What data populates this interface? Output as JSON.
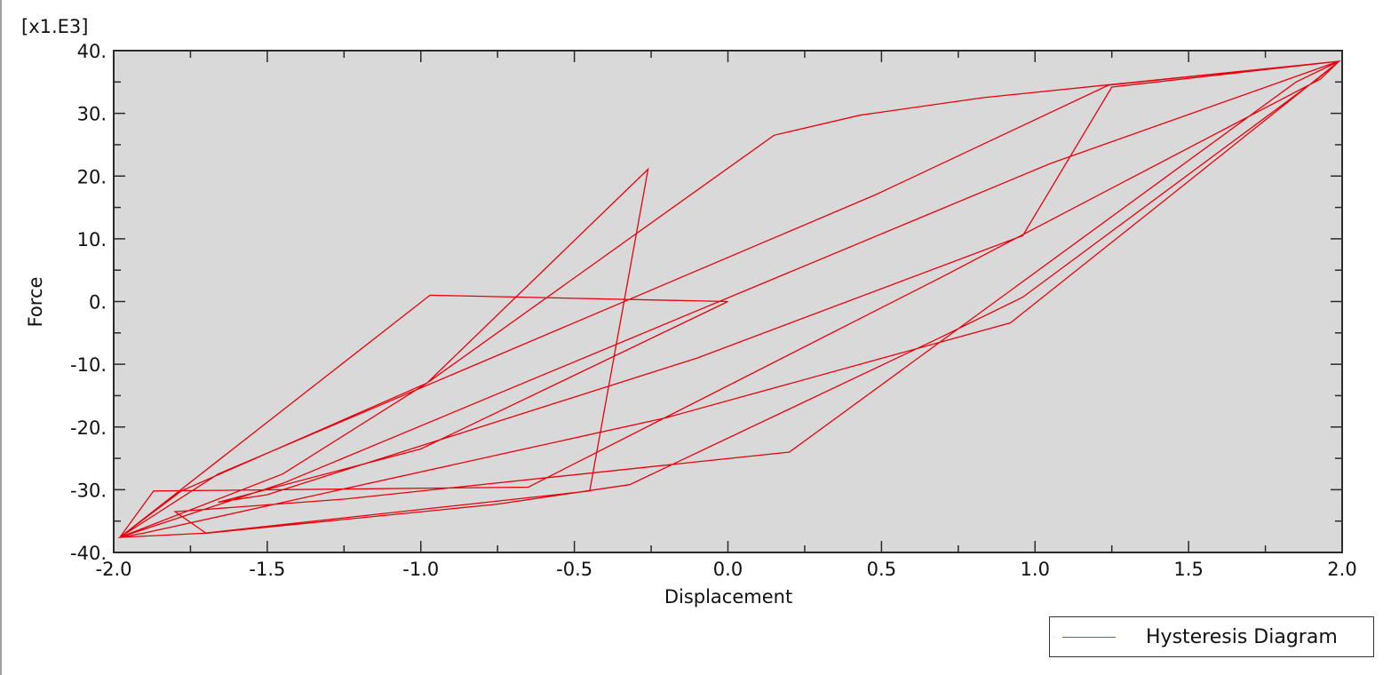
{
  "chart_data": {
    "type": "line",
    "title": "",
    "xlabel": "Displacement",
    "ylabel": "Force",
    "y_multiplier_label": "[x1.E3]",
    "xlim": [
      -2.0,
      2.0
    ],
    "ylim": [
      -40,
      40
    ],
    "x_ticks": [
      -2.0,
      -1.5,
      -1.0,
      -0.5,
      0.0,
      0.5,
      1.0,
      1.5,
      2.0
    ],
    "x_tick_labels": [
      "-2.0",
      "-1.5",
      "-1.0",
      "-0.5",
      "0.0",
      "0.5",
      "1.0",
      "1.5",
      "2.0"
    ],
    "y_ticks": [
      -40,
      -30,
      -20,
      -10,
      0,
      10,
      20,
      30,
      40
    ],
    "y_tick_labels": [
      "-40.",
      "-30.",
      "-20.",
      "-10.",
      "0.",
      "10.",
      "20.",
      "30.",
      "40."
    ],
    "grid": false,
    "plot_background": "#d9d9d9",
    "legend_position": "bottom-right, outside plot",
    "series": [
      {
        "name": "Hysteresis Diagram",
        "color": "#e8000b",
        "x": [
          0.0,
          -0.97,
          -1.98,
          -1.45,
          -0.98,
          0.15,
          0.43,
          0.83,
          1.23,
          1.99,
          1.92,
          0.96,
          0.68,
          -0.32,
          -0.75,
          -1.69,
          -1.98,
          -1.78,
          -0.98,
          -0.26,
          -0.45,
          -1.7,
          -1.8,
          -1.25,
          0.2,
          1.85,
          1.99,
          1.38,
          0.92,
          -0.2,
          -1.9,
          -1.98,
          -1.66,
          0.48,
          1.24,
          1.99,
          1.93,
          0.7,
          -0.65,
          -1.87,
          -1.98,
          -1.45,
          1.05,
          1.96,
          1.99,
          1.25,
          0.96,
          -0.1,
          -1.5,
          -1.66,
          -1.0,
          0.0
        ],
        "y": [
          0.0,
          1.0,
          -37.6,
          -27.5,
          -13.0,
          26.5,
          29.7,
          32.5,
          34.5,
          38.3,
          35.5,
          0.7,
          -6.0,
          -29.2,
          -32.3,
          -36.9,
          -37.6,
          -30.2,
          -13.0,
          21.1,
          -30.2,
          -36.9,
          -33.5,
          -31.5,
          -24.0,
          35.0,
          38.3,
          14.5,
          -3.4,
          -18.5,
          -36.9,
          -37.6,
          -27.5,
          17.0,
          34.5,
          38.3,
          35.5,
          4.0,
          -29.6,
          -30.2,
          -37.6,
          -29.0,
          22.0,
          37.8,
          38.3,
          34.2,
          10.5,
          -9.0,
          -30.8,
          -32.0,
          -23.5,
          0.0
        ]
      }
    ]
  },
  "legend": {
    "label": "Hysteresis Diagram"
  },
  "axes": {
    "x_title": "Displacement",
    "y_title": "Force",
    "y_multiplier": "[x1.E3]"
  }
}
